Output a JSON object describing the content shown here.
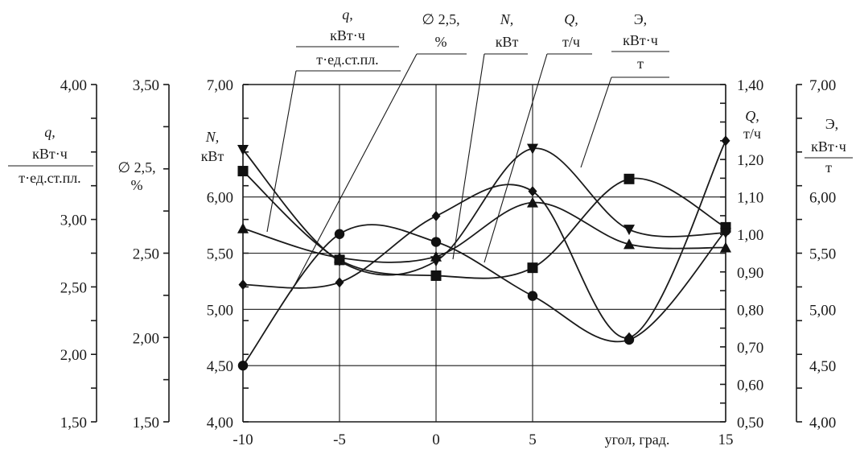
{
  "chart_data": {
    "type": "line",
    "x": [
      -10,
      -5,
      0,
      5,
      10,
      15
    ],
    "x_tick_labels": [
      "-10",
      "-5",
      "0",
      "5",
      "15"
    ],
    "x_ticks_shown": [
      -10,
      -5,
      0,
      5,
      15
    ],
    "xlim": [
      -10,
      15
    ],
    "xlabel": "угол, град.",
    "grid": true,
    "axes": [
      {
        "id": "q",
        "side": "left",
        "lim": [
          1.5,
          4.0
        ],
        "tick_labels": [
          "1,50",
          "2,00",
          "2,50",
          "3,00",
          "4,00"
        ],
        "tick_values": [
          1.5,
          2.0,
          2.5,
          3.0,
          4.0
        ],
        "label_symbol": "q,",
        "label_num": "кВт·ч",
        "label_den": "т·ед.ст.пл."
      },
      {
        "id": "d",
        "side": "left",
        "lim": [
          1.5,
          3.5
        ],
        "tick_labels": [
          "1,50",
          "2,00",
          "2,50",
          "3,50"
        ],
        "tick_values": [
          1.5,
          2.0,
          2.5,
          3.5
        ],
        "label_symbol": "∅ 2,5,",
        "label_unit": "%"
      },
      {
        "id": "N",
        "side": "left",
        "lim": [
          4.0,
          7.0
        ],
        "tick_labels": [
          "4,00",
          "4,50",
          "5,00",
          "5,50",
          "6,00",
          "7,00"
        ],
        "tick_values": [
          4.0,
          4.5,
          5.0,
          5.5,
          6.0,
          7.0
        ],
        "label_symbol": "N,",
        "label_unit": "кВт"
      },
      {
        "id": "Q",
        "side": "right",
        "lim": [
          0.5,
          1.4
        ],
        "tick_labels": [
          "0,50",
          "0,60",
          "0,70",
          "0,80",
          "0,90",
          "1,00",
          "1,10",
          "1,20",
          "1,40"
        ],
        "tick_values": [
          0.5,
          0.6,
          0.7,
          0.8,
          0.9,
          1.0,
          1.1,
          1.2,
          1.4
        ],
        "label_symbol": "Q,",
        "label_unit": "т/ч"
      },
      {
        "id": "E",
        "side": "right",
        "lim": [
          4.0,
          7.0
        ],
        "tick_labels": [
          "4,00",
          "4,50",
          "5,00",
          "5,50",
          "6,00",
          "7,00"
        ],
        "tick_values": [
          4.0,
          4.5,
          5.0,
          5.5,
          6.0,
          7.0
        ],
        "label_symbol": "Э,",
        "label_num": "кВт·ч",
        "label_den": "т"
      }
    ],
    "series": [
      {
        "marker": "circle",
        "axis": "N",
        "values": [
          4.5,
          5.67,
          5.6,
          5.12,
          4.73,
          5.7
        ]
      },
      {
        "marker": "square",
        "axis": "N",
        "values": [
          6.23,
          5.44,
          5.3,
          5.37,
          6.16,
          5.73
        ]
      },
      {
        "marker": "diamond",
        "axis": "N",
        "values": [
          5.22,
          5.24,
          5.83,
          6.05,
          4.75,
          6.5
        ]
      },
      {
        "marker": "triangle",
        "axis": "N",
        "values": [
          5.72,
          5.46,
          5.47,
          5.95,
          5.58,
          5.55
        ]
      },
      {
        "marker": "triangle-down",
        "axis": "N",
        "values": [
          6.42,
          5.43,
          5.43,
          6.43,
          5.71,
          5.68
        ]
      }
    ],
    "legend_top": [
      {
        "symbol": "q,",
        "num": "кВт·ч",
        "den": "т·ед.ст.пл."
      },
      {
        "symbol": "∅ 2,5,",
        "unit": "%"
      },
      {
        "symbol": "N,",
        "unit": "кВт"
      },
      {
        "symbol": "Q,",
        "unit": "т/ч"
      },
      {
        "symbol": "Э,",
        "num": "кВт·ч",
        "den": "т"
      }
    ]
  }
}
